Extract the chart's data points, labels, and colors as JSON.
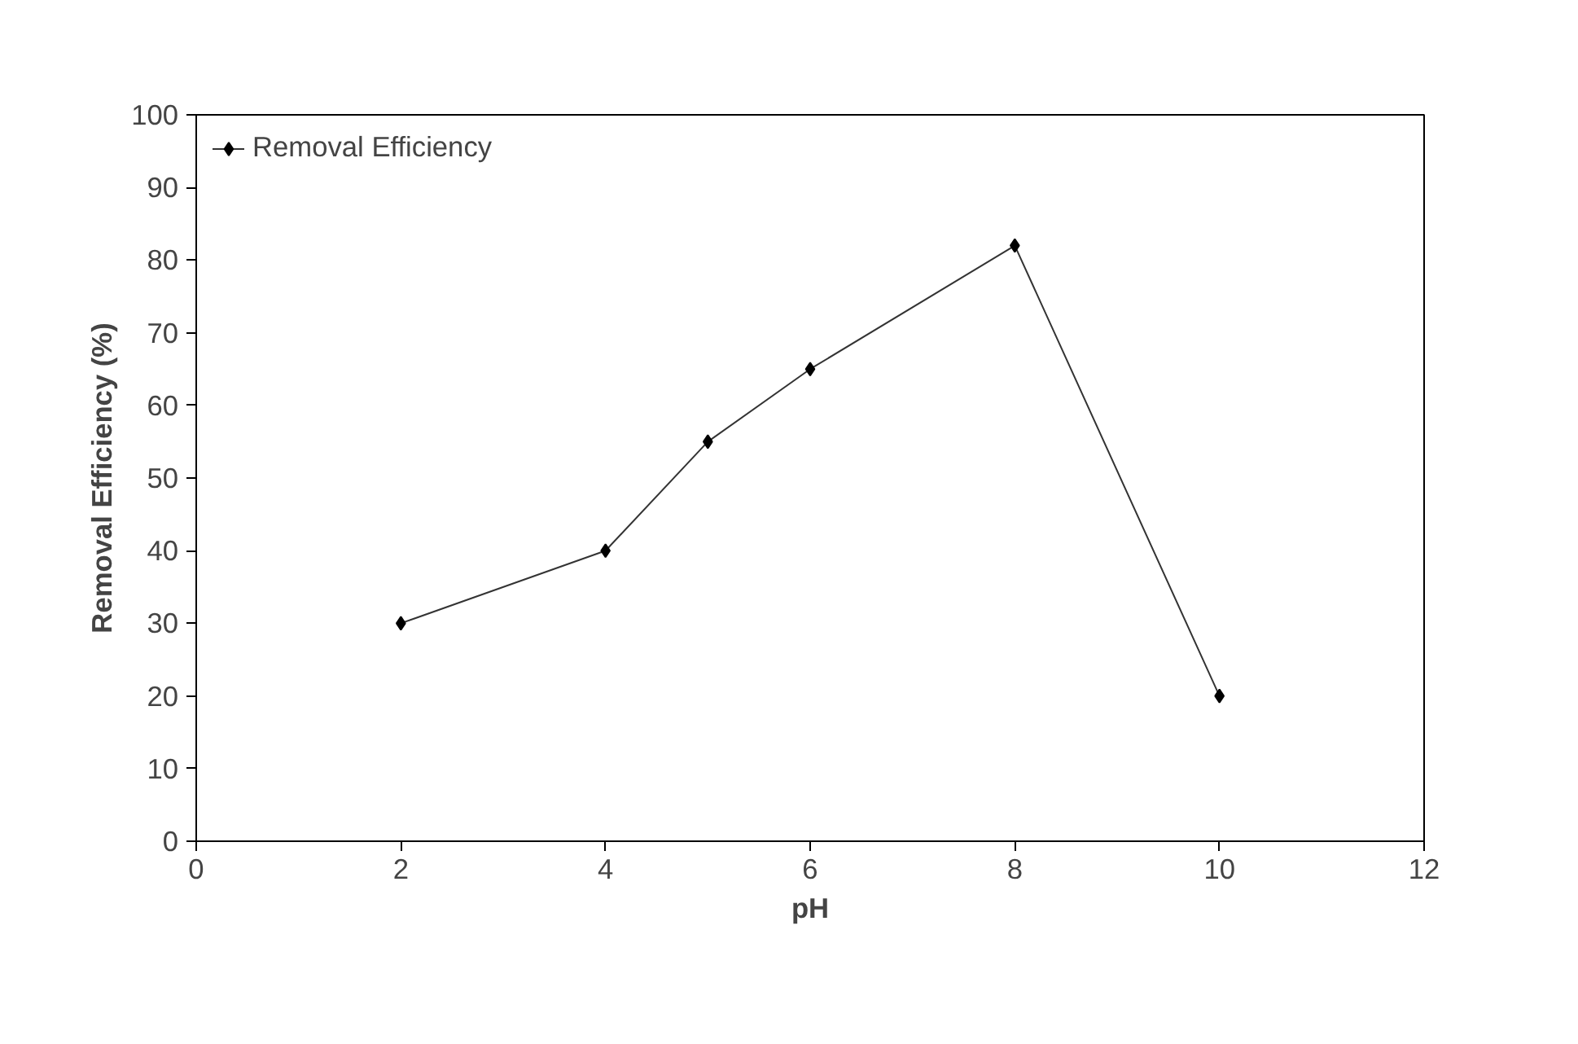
{
  "chart_data": {
    "type": "line",
    "xlabel": "pH",
    "ylabel": "Removal Efficiency (%)",
    "x": [
      2,
      4,
      5,
      6,
      8,
      10
    ],
    "series": [
      {
        "name": "Removal Efficiency",
        "color": "#000000",
        "values": [
          30,
          40,
          55,
          65,
          82,
          20
        ]
      }
    ],
    "xlim": [
      0,
      12
    ],
    "xticks": [
      0,
      2,
      4,
      6,
      8,
      10,
      12
    ],
    "ylim": [
      0,
      100
    ],
    "yticks": [
      0,
      10,
      20,
      30,
      40,
      50,
      60,
      70,
      80,
      90,
      100
    ],
    "marker": "diamond",
    "line_style": "solid",
    "legend": "top left",
    "grid": false
  }
}
